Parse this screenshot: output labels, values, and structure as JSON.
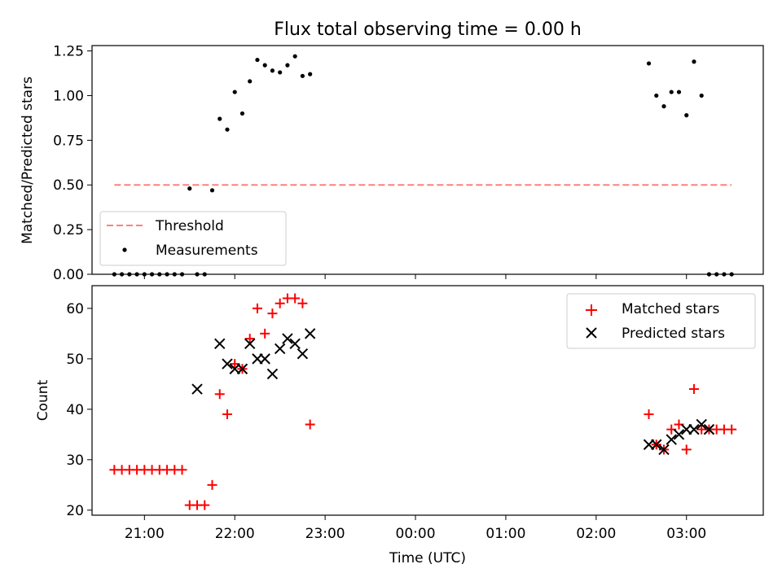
{
  "chart_data": [
    {
      "type": "scatter",
      "title": "Flux total observing time = 0.00 h",
      "xlabel": "",
      "ylabel": "Matched/Predicted stars",
      "ylim": [
        0,
        1.28
      ],
      "xlim_hours": [
        20.42,
        27.85
      ],
      "yticks": [
        0,
        0.25,
        0.5,
        0.75,
        1.0,
        1.25
      ],
      "ytick_labels": [
        "0.00",
        "0.25",
        "0.50",
        "0.75",
        "1.00",
        "1.25"
      ],
      "grid": false,
      "legend": {
        "placement": "lower-left",
        "entries": [
          {
            "name": "Threshold",
            "kind": "dashed-line",
            "color": "#ff7f7f"
          },
          {
            "name": "Measurements",
            "kind": "dot",
            "color": "#000000"
          }
        ]
      },
      "series": [
        {
          "name": "Threshold",
          "style": "dashed",
          "color": "#ff7f7f",
          "x": [
            "20:40",
            "03:30"
          ],
          "y": [
            0.5,
            0.5
          ]
        },
        {
          "name": "Measurements",
          "style": "dot",
          "color": "#000000",
          "x": [
            "20:40",
            "20:45",
            "20:50",
            "20:55",
            "21:00",
            "21:05",
            "21:10",
            "21:15",
            "21:20",
            "21:25",
            "21:30",
            "21:35",
            "21:40",
            "21:45",
            "21:50",
            "21:55",
            "22:00",
            "22:05",
            "22:10",
            "22:15",
            "22:20",
            "22:25",
            "22:30",
            "22:35",
            "22:40",
            "22:45",
            "22:50",
            "02:35",
            "02:40",
            "02:45",
            "02:50",
            "02:55",
            "03:00",
            "03:05",
            "03:10",
            "03:15",
            "03:20",
            "03:25",
            "03:30"
          ],
          "y": [
            0,
            0,
            0,
            0,
            0,
            0,
            0,
            0,
            0,
            0,
            0.48,
            0,
            0,
            0.47,
            0.87,
            0.81,
            1.02,
            0.9,
            1.08,
            1.2,
            1.17,
            1.14,
            1.13,
            1.17,
            1.22,
            1.11,
            1.12,
            1.18,
            1.0,
            0.94,
            1.02,
            1.02,
            0.89,
            1.19,
            1.0,
            0,
            0,
            0,
            0
          ]
        }
      ]
    },
    {
      "type": "scatter",
      "title": "",
      "xlabel": "Time (UTC)",
      "ylabel": "Count",
      "ylim": [
        19,
        64.5
      ],
      "xlim_hours": [
        20.42,
        27.85
      ],
      "yticks": [
        20,
        30,
        40,
        50,
        60
      ],
      "ytick_labels": [
        "20",
        "30",
        "40",
        "50",
        "60"
      ],
      "xticks_hours": [
        21,
        22,
        23,
        24,
        25,
        26,
        27
      ],
      "xtick_labels": [
        "21:00",
        "22:00",
        "23:00",
        "00:00",
        "01:00",
        "02:00",
        "03:00"
      ],
      "grid": false,
      "legend": {
        "placement": "top-right",
        "entries": [
          {
            "name": "Matched stars",
            "kind": "plus",
            "color": "#ff0000"
          },
          {
            "name": "Predicted stars",
            "kind": "x",
            "color": "#000000"
          }
        ]
      },
      "series": [
        {
          "name": "Matched stars",
          "marker": "plus",
          "color": "#ff0000",
          "x": [
            "20:40",
            "20:45",
            "20:50",
            "20:55",
            "21:00",
            "21:05",
            "21:10",
            "21:15",
            "21:20",
            "21:25",
            "21:30",
            "21:35",
            "21:40",
            "21:45",
            "21:50",
            "21:55",
            "22:00",
            "22:05",
            "22:10",
            "22:15",
            "22:20",
            "22:25",
            "22:30",
            "22:35",
            "22:40",
            "22:45",
            "22:50",
            "02:35",
            "02:40",
            "02:45",
            "02:50",
            "02:55",
            "03:00",
            "03:05",
            "03:10",
            "03:15",
            "03:20",
            "03:25",
            "03:30"
          ],
          "y": [
            28,
            28,
            28,
            28,
            28,
            28,
            28,
            28,
            28,
            28,
            21,
            21,
            21,
            25,
            43,
            39,
            49,
            48,
            54,
            60,
            55,
            59,
            61,
            62,
            62,
            61,
            37,
            39,
            33,
            32,
            36,
            37,
            32,
            44,
            36,
            36,
            36,
            36,
            36
          ]
        },
        {
          "name": "Predicted stars",
          "marker": "x",
          "color": "#000000",
          "x": [
            "21:35",
            "21:50",
            "21:55",
            "22:00",
            "22:05",
            "22:10",
            "22:15",
            "22:20",
            "22:25",
            "22:30",
            "22:35",
            "22:40",
            "22:45",
            "22:50",
            "02:35",
            "02:40",
            "02:45",
            "02:50",
            "02:55",
            "03:00",
            "03:05",
            "03:10",
            "03:15"
          ],
          "y": [
            44,
            53,
            49,
            48,
            48,
            53,
            50,
            50,
            47,
            52,
            54,
            53,
            51,
            55,
            33,
            33,
            32,
            34,
            35,
            36,
            36,
            37,
            36
          ]
        }
      ]
    }
  ]
}
